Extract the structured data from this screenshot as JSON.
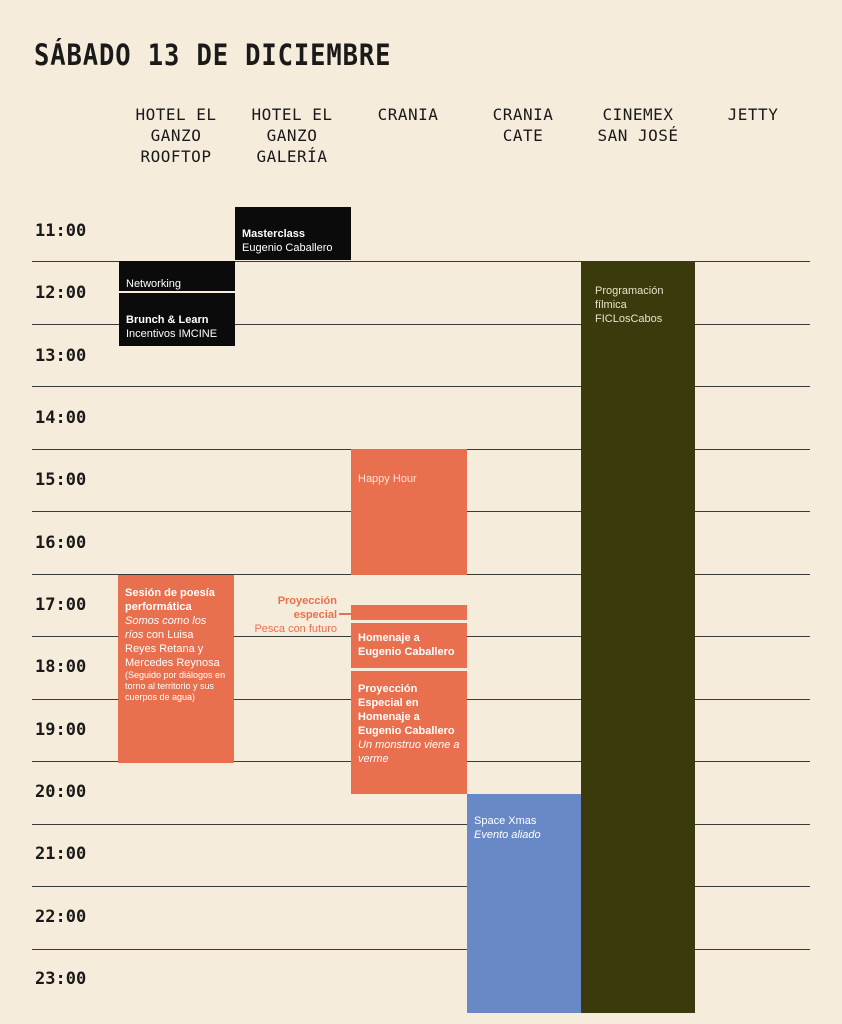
{
  "title": "SÁBADO 13 DE DICIEMBRE",
  "venues": [
    "HOTEL EL GANZO ROOFTOP",
    "HOTEL EL GANZO GALERÍA",
    "CRANIA",
    "CRANIA CATE",
    "CINEMEX SAN JOSÉ",
    "JETTY"
  ],
  "hours": [
    "11:00",
    "12:00",
    "13:00",
    "14:00",
    "15:00",
    "16:00",
    "17:00",
    "18:00",
    "19:00",
    "20:00",
    "21:00",
    "22:00",
    "23:00"
  ],
  "events": [
    {
      "title": "Masterclass",
      "subtitle": "Eugenio Caballero"
    },
    {
      "title": "Networking\nde industria"
    },
    {
      "title": "Brunch & Learn",
      "subtitle": "Incentivos IMCINE"
    },
    {
      "title": "Programación\nfílmica\nFICLosCabos"
    },
    {
      "title": "Happy Hour"
    },
    {
      "title": "Sesión de poesía performática",
      "film": "Somos como los ríos",
      "detail": "con Luisa Reyes Retana y Mercedes Reynosa",
      "note": "(Seguido por diálogos en torno al territorio y sus cuerpos de agua)"
    },
    {
      "title": "Proyección\nespecial",
      "subtitle": "Pesca con futuro"
    },
    {
      "title": "Homenaje a Eugenio Caballero"
    },
    {
      "title": "Proyección Especial en Homenaje a Eugenio Caballero",
      "film": "Un monstruo viene a verme"
    },
    {
      "title": "Space Xmas",
      "subtitle": "Evento aliado"
    }
  ]
}
